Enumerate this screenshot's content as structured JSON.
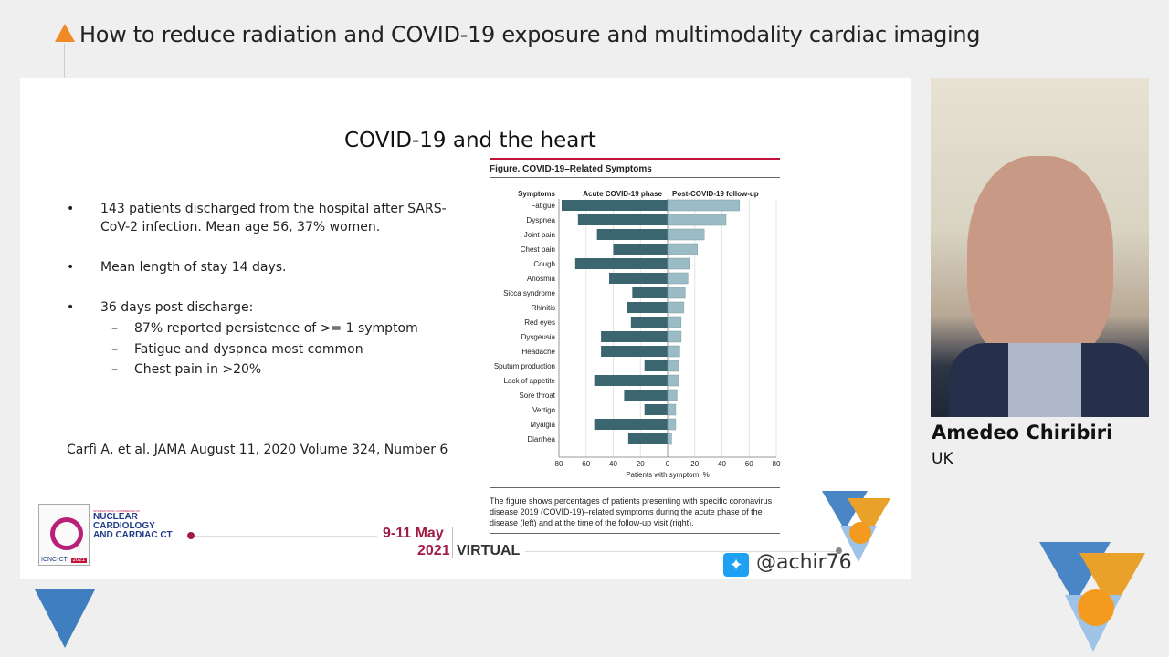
{
  "header": {
    "title": "How to reduce radiation and COVID-19 exposure and multimodality cardiac imaging"
  },
  "slide": {
    "title": "COVID-19 and the heart",
    "bullets": [
      {
        "text": "143 patients discharged from the hospital after SARS-CoV-2 infection. Mean age 56, 37% women."
      },
      {
        "text": "Mean length of stay 14 days."
      },
      {
        "text": "36 days post discharge:",
        "sub": [
          "87% reported persistence of >= 1 symptom",
          "Fatigue and dyspnea most common",
          "Chest pain in >20%"
        ]
      }
    ],
    "bullet_char": "•",
    "sub_char": "–",
    "citation": "Carfì A, et al. JAMA August 11, 2020 Volume 324, Number 6",
    "footer": {
      "conf_small": "INTERNATIONAL CONFERENCE ON",
      "conf_line1": "NUCLEAR",
      "conf_line2": "CARDIOLOGY",
      "conf_line3": "AND CARDIAC CT",
      "logo_text": "ICNC-CT",
      "logo_year": "2021",
      "date_line1": "9-11 May",
      "date_line2": "2021",
      "virtual": "VIRTUAL",
      "twitter": "@achir76"
    }
  },
  "chart_data": {
    "type": "bar",
    "orientation": "horizontal-butterfly",
    "title": "Figure. COVID-19–Related Symptoms",
    "category_header": "Symptoms",
    "categories": [
      "Fatigue",
      "Dyspnea",
      "Joint pain",
      "Chest pain",
      "Cough",
      "Anosmia",
      "Sicca syndrome",
      "Rhinitis",
      "Red eyes",
      "Dysgeusia",
      "Headache",
      "Sputum production",
      "Lack of appetite",
      "Sore throat",
      "Vertigo",
      "Myalgia",
      "Diarrhea"
    ],
    "series": [
      {
        "name": "Acute COVID-19 phase",
        "color": "#3b6670",
        "values": [
          78,
          66,
          52,
          40,
          68,
          43,
          26,
          30,
          27,
          49,
          49,
          17,
          54,
          32,
          17,
          54,
          29
        ]
      },
      {
        "name": "Post-COVID-19 follow-up",
        "color": "#9bbcc4",
        "values": [
          53,
          43,
          27,
          22,
          16,
          15,
          13,
          12,
          10,
          10,
          9,
          8,
          8,
          7,
          6,
          6,
          3
        ]
      }
    ],
    "xlabel": "Patients with symptom, %",
    "xticks": [
      "80",
      "60",
      "40",
      "20",
      "0",
      "20",
      "40",
      "60",
      "80"
    ],
    "xlim": [
      0,
      80
    ],
    "grid": true,
    "caption": "The figure shows percentages of patients presenting with specific coronavirus disease 2019 (COVID-19)–related symptoms during the acute phase of the disease (left) and at the time of the follow-up visit (right)."
  },
  "speaker": {
    "name": "Amedeo Chiribiri",
    "country": "UK"
  },
  "colors": {
    "accent": "#f08a24",
    "brand_red": "#a01c44",
    "navy": "#1f3c8a",
    "blue": "#3f7fc0"
  }
}
